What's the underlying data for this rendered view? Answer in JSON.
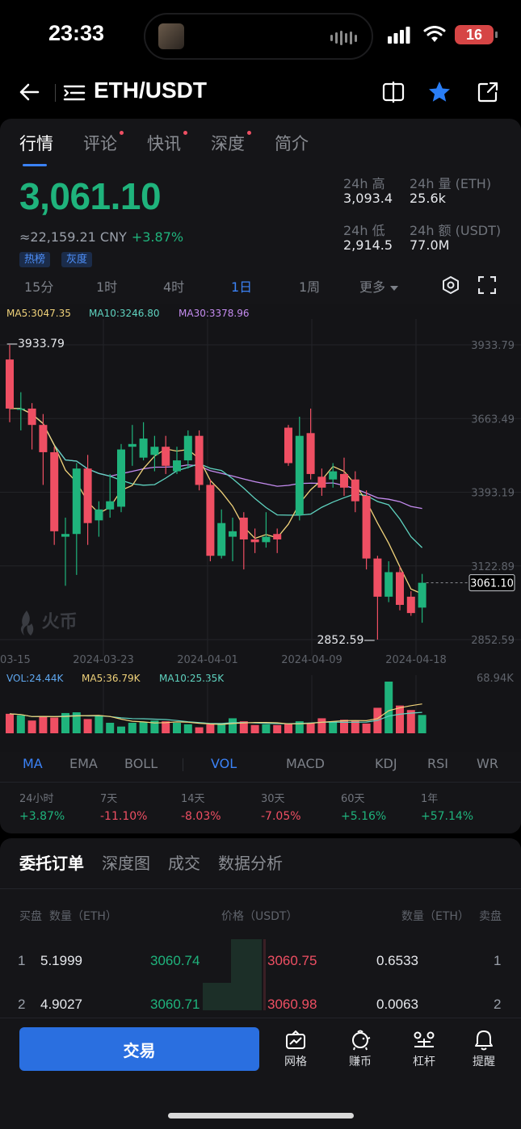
{
  "status": {
    "time": "23:33",
    "battery": "16"
  },
  "header": {
    "pair": "ETH/USDT"
  },
  "tabs": [
    {
      "label": "行情",
      "dot": false
    },
    {
      "label": "评论",
      "dot": true
    },
    {
      "label": "快讯",
      "dot": true
    },
    {
      "label": "深度",
      "dot": true
    },
    {
      "label": "简介",
      "dot": false
    }
  ],
  "price": {
    "last": "3,061.10",
    "cny": "≈22,159.21 CNY",
    "change": "+3.87%",
    "badges": [
      "热榜",
      "灰度"
    ]
  },
  "stats": {
    "high_label": "24h 高",
    "high": "3,093.4",
    "vol_label": "24h 量 (ETH)",
    "vol": "25.6k",
    "low_label": "24h 低",
    "low": "2,914.5",
    "amt_label": "24h 额 (USDT)",
    "amt": "77.0M"
  },
  "timeframes": [
    "15分",
    "1时",
    "4时",
    "1日",
    "1周",
    "更多"
  ],
  "active_timeframe": "1日",
  "ma_legend": {
    "ma5": "MA5:3047.35",
    "ma10": "MA10:3246.80",
    "ma30": "MA30:3378.96"
  },
  "vol_legend": {
    "vol": "VOL:24.44K",
    "ma5": "MA5:36.79K",
    "ma10": "MA10:25.35K"
  },
  "watermark": "火币",
  "chart_data": {
    "type": "candlestick",
    "y_ticks": [
      "3933.79",
      "3663.49",
      "3393.19",
      "3122.89",
      "2852.59"
    ],
    "x_ticks": [
      "03-15",
      "2024-03-23",
      "2024-04-01",
      "2024-04-09",
      "2024-04-18"
    ],
    "ylim": [
      2852.59,
      3933.79
    ],
    "high_marker": "3933.79",
    "low_marker": "2852.59",
    "last_price_tag": "3061.10",
    "vol_max": "68.94K",
    "candles": [
      {
        "o": 3880,
        "c": 3700,
        "h": 3933.79,
        "l": 3650
      },
      {
        "o": 3700,
        "c": 3700,
        "h": 3760,
        "l": 3620
      },
      {
        "o": 3700,
        "c": 3640,
        "h": 3720,
        "l": 3550
      },
      {
        "o": 3640,
        "c": 3540,
        "h": 3680,
        "l": 3420
      },
      {
        "o": 3540,
        "c": 3250,
        "h": 3560,
        "l": 3200
      },
      {
        "o": 3230,
        "c": 3240,
        "h": 3300,
        "l": 3050
      },
      {
        "o": 3240,
        "c": 3480,
        "h": 3500,
        "l": 3090
      },
      {
        "o": 3480,
        "c": 3280,
        "h": 3530,
        "l": 3200
      },
      {
        "o": 3290,
        "c": 3330,
        "h": 3360,
        "l": 3230
      },
      {
        "o": 3330,
        "c": 3360,
        "h": 3460,
        "l": 3300
      },
      {
        "o": 3340,
        "c": 3550,
        "h": 3570,
        "l": 3320
      },
      {
        "o": 3560,
        "c": 3570,
        "h": 3640,
        "l": 3490
      },
      {
        "o": 3520,
        "c": 3590,
        "h": 3650,
        "l": 3510
      },
      {
        "o": 3530,
        "c": 3560,
        "h": 3600,
        "l": 3470
      },
      {
        "o": 3560,
        "c": 3490,
        "h": 3600,
        "l": 3460
      },
      {
        "o": 3470,
        "c": 3510,
        "h": 3560,
        "l": 3460
      },
      {
        "o": 3510,
        "c": 3600,
        "h": 3620,
        "l": 3480
      },
      {
        "o": 3600,
        "c": 3420,
        "h": 3620,
        "l": 3400
      },
      {
        "o": 3420,
        "c": 3160,
        "h": 3440,
        "l": 3140
      },
      {
        "o": 3160,
        "c": 3280,
        "h": 3330,
        "l": 3150
      },
      {
        "o": 3230,
        "c": 3250,
        "h": 3300,
        "l": 3140
      },
      {
        "o": 3300,
        "c": 3220,
        "h": 3320,
        "l": 3110
      },
      {
        "o": 3220,
        "c": 3210,
        "h": 3260,
        "l": 3170
      },
      {
        "o": 3210,
        "c": 3230,
        "h": 3320,
        "l": 3190
      },
      {
        "o": 3240,
        "c": 3220,
        "h": 3260,
        "l": 3170
      },
      {
        "o": 3630,
        "c": 3500,
        "h": 3640,
        "l": 3490
      },
      {
        "o": 3310,
        "c": 3600,
        "h": 3670,
        "l": 3290
      },
      {
        "o": 3610,
        "c": 3460,
        "h": 3700,
        "l": 3440
      },
      {
        "o": 3450,
        "c": 3410,
        "h": 3480,
        "l": 3380
      },
      {
        "o": 3440,
        "c": 3470,
        "h": 3500,
        "l": 3410
      },
      {
        "o": 3460,
        "c": 3410,
        "h": 3520,
        "l": 3380
      },
      {
        "o": 3440,
        "c": 3360,
        "h": 3470,
        "l": 3320
      },
      {
        "o": 3380,
        "c": 3150,
        "h": 3400,
        "l": 3110
      },
      {
        "o": 3150,
        "c": 3010,
        "h": 3160,
        "l": 2852.59
      },
      {
        "o": 3010,
        "c": 3100,
        "h": 3140,
        "l": 2990
      },
      {
        "o": 3100,
        "c": 2980,
        "h": 3120,
        "l": 2960
      },
      {
        "o": 3010,
        "c": 2950,
        "h": 3030,
        "l": 2940
      },
      {
        "o": 2970,
        "c": 3061.1,
        "h": 3093.4,
        "l": 2914.5
      }
    ],
    "volumes": [
      26,
      24,
      17,
      23,
      21,
      27,
      28,
      19,
      24,
      14,
      9,
      14,
      15,
      17,
      16,
      14,
      12,
      8,
      12,
      13,
      20,
      16,
      11,
      12,
      11,
      13,
      16,
      14,
      20,
      16,
      18,
      17,
      13,
      34,
      68.94,
      37,
      31,
      24.44
    ]
  },
  "indicators": [
    "MA",
    "EMA",
    "BOLL",
    "VOL",
    "MACD",
    "KDJ",
    "RSI",
    "WR"
  ],
  "active_indicators": [
    "MA",
    "VOL"
  ],
  "performance": [
    {
      "label": "24小时",
      "value": "+3.87%",
      "dir": "up"
    },
    {
      "label": "7天",
      "value": "-11.10%",
      "dir": "dn"
    },
    {
      "label": "14天",
      "value": "-8.03%",
      "dir": "dn"
    },
    {
      "label": "30天",
      "value": "-7.05%",
      "dir": "dn"
    },
    {
      "label": "60天",
      "value": "+5.16%",
      "dir": "up"
    },
    {
      "label": "1年",
      "value": "+57.14%",
      "dir": "up"
    }
  ],
  "orderbook": {
    "tabs": [
      "委托订单",
      "深度图",
      "成交",
      "数据分析"
    ],
    "headers": {
      "bid": "买盘",
      "qty_l": "数量（ETH）",
      "price": "价格（USDT）",
      "qty_r": "数量（ETH）",
      "ask": "卖盘"
    },
    "rows": [
      {
        "idx": "1",
        "bid_qty": "5.1999",
        "bid_price": "3060.74",
        "ask_price": "3060.75",
        "ask_qty": "0.6533",
        "ask_idx": "1"
      },
      {
        "idx": "2",
        "bid_qty": "4.9027",
        "bid_price": "3060.71",
        "ask_price": "3060.98",
        "ask_qty": "0.0063",
        "ask_idx": "2"
      }
    ]
  },
  "bottom": {
    "trade": "交易",
    "items": [
      {
        "label": "网格",
        "icon": "grid-bot-icon"
      },
      {
        "label": "赚币",
        "icon": "piggy-bank-icon"
      },
      {
        "label": "杠杆",
        "icon": "leverage-icon"
      },
      {
        "label": "提醒",
        "icon": "bell-icon"
      }
    ]
  },
  "colors": {
    "up": "#1fb37c",
    "down": "#ef4f63",
    "accent": "#3b82f6"
  }
}
